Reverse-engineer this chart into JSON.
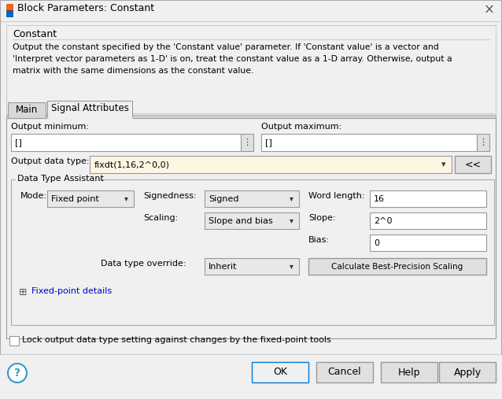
{
  "title": "Block Parameters: Constant",
  "bg_color": "#f0f0f0",
  "white": "#ffffff",
  "border_color": "#999999",
  "section_header": "Constant",
  "description_line1": "Output the constant specified by the 'Constant value' parameter. If 'Constant value' is a vector and",
  "description_line2": "'Interpret vector parameters as 1-D' is on, treat the constant value as a 1-D array. Otherwise, output a",
  "description_line3": "matrix with the same dimensions as the constant value.",
  "tab_main": "Main",
  "tab_signal": "Signal Attributes",
  "output_min_label": "Output minimum:",
  "output_max_label": "Output maximum:",
  "output_min_value": "[]",
  "output_max_value": "[]",
  "output_data_type_label": "Output data type:",
  "output_data_type_value": "fixdt(1,16,2^0,0)",
  "data_type_assistant_label": "Data Type Assistant",
  "mode_label": "Mode:",
  "mode_value": "Fixed point",
  "signedness_label": "Signedness:",
  "signedness_value": "Signed",
  "word_length_label": "Word length:",
  "word_length_value": "16",
  "scaling_label": "Scaling:",
  "scaling_value": "Slope and bias",
  "slope_label": "Slope:",
  "slope_value": "2^0",
  "bias_label": "Bias:",
  "bias_value": "0",
  "data_type_override_label": "Data type override:",
  "data_type_override_value": "Inherit",
  "calc_button": "Calculate Best-Precision Scaling",
  "fixed_point_plus": "⊞",
  "fixed_point_details": "Fixed-point details",
  "lock_checkbox_label": "Lock output data type setting against changes by the fixed-point tools",
  "ok_button": "OK",
  "cancel_button": "Cancel",
  "help_button": "Help",
  "apply_button": "Apply",
  "dropdown_bg": "#e8e8e8",
  "input_bg": "#fdf6e3",
  "link_color": "#0000cc",
  "button_bg": "#e0e0e0",
  "ok_border": "#0078d7",
  "group_border": "#aaaaaa",
  "help_circle_color": "#3399cc"
}
